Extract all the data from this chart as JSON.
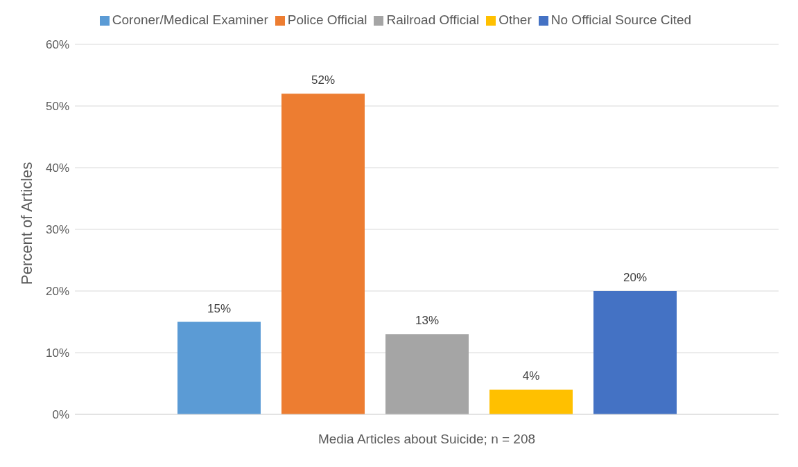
{
  "chart_data": {
    "type": "bar",
    "xlabel": "Media Articles about Suicide; n = 208",
    "ylabel": "Percent of Articles",
    "categories": [
      null
    ],
    "series": [
      {
        "name": "Coroner/Medical Examiner",
        "color": "#5b9bd5",
        "values": [
          15
        ],
        "value_labels": [
          "15%"
        ]
      },
      {
        "name": "Police Official",
        "color": "#ed7d31",
        "values": [
          52
        ],
        "value_labels": [
          "52%"
        ]
      },
      {
        "name": "Railroad Official",
        "color": "#a5a5a5",
        "values": [
          13
        ],
        "value_labels": [
          "13%"
        ]
      },
      {
        "name": "Other",
        "color": "#ffc000",
        "values": [
          4
        ],
        "value_labels": [
          "4%"
        ]
      },
      {
        "name": "No Official Source Cited",
        "color": "#4472c4",
        "values": [
          20
        ],
        "value_labels": [
          "20%"
        ]
      }
    ],
    "ylim": [
      0,
      60
    ],
    "yticks": [
      {
        "value": 0,
        "label": "0%"
      },
      {
        "value": 10,
        "label": "10%"
      },
      {
        "value": 20,
        "label": "20%"
      },
      {
        "value": 30,
        "label": "30%"
      },
      {
        "value": 40,
        "label": "40%"
      },
      {
        "value": 50,
        "label": "50%"
      },
      {
        "value": 60,
        "label": "60%"
      }
    ],
    "grid": "y",
    "legend": "top"
  }
}
